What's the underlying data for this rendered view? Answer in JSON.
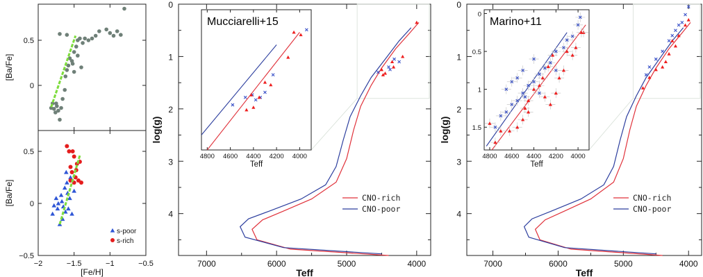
{
  "chart_data": [
    {
      "id": "p1",
      "type": "scatter",
      "xlim": [
        -2,
        -0.5
      ],
      "ylim": [
        -0.5,
        0.9
      ],
      "yticks": [
        -0.5,
        0,
        0.5
      ],
      "ytick_labels": [
        "−0.5",
        "0",
        "0.5"
      ],
      "xticks": [
        -2,
        -1.5,
        -1,
        -0.5
      ],
      "ylabel": "[Ba/Fe]",
      "colors": {
        "points": "#6f8078",
        "fit": "#7ddc3c"
      },
      "points": [
        [
          -1.82,
          -0.25
        ],
        [
          -1.8,
          -0.2
        ],
        [
          -1.78,
          -0.26
        ],
        [
          -1.75,
          -0.2
        ],
        [
          -1.76,
          -0.3
        ],
        [
          -1.72,
          -0.28
        ],
        [
          -1.74,
          -0.23
        ],
        [
          -1.7,
          -0.38
        ],
        [
          -1.68,
          -0.25
        ],
        [
          -1.66,
          -0.15
        ],
        [
          -1.63,
          -0.05
        ],
        [
          -1.62,
          0.1
        ],
        [
          -1.6,
          0.17
        ],
        [
          -1.58,
          0.22
        ],
        [
          -1.56,
          0.3
        ],
        [
          -1.53,
          0.27
        ],
        [
          -1.5,
          0.37
        ],
        [
          -1.47,
          0.43
        ],
        [
          -1.45,
          0.5
        ],
        [
          -1.42,
          0.52
        ],
        [
          -1.38,
          0.47
        ],
        [
          -1.35,
          0.52
        ],
        [
          -1.3,
          0.5
        ],
        [
          -1.25,
          0.52
        ],
        [
          -1.2,
          0.55
        ],
        [
          -1.15,
          0.6
        ],
        [
          -1.05,
          0.62
        ],
        [
          -1.0,
          0.58
        ],
        [
          -0.95,
          0.55
        ],
        [
          -0.9,
          0.6
        ],
        [
          -0.85,
          0.56
        ],
        [
          -0.8,
          0.85
        ],
        [
          -1.7,
          0.57
        ],
        [
          -1.6,
          0.56
        ],
        [
          -1.45,
          0.33
        ],
        [
          -1.4,
          0.2
        ],
        [
          -1.5,
          0.15
        ],
        [
          -1.52,
          0.24
        ]
      ],
      "fit_line": [
        [
          -1.82,
          -0.24
        ],
        [
          -1.48,
          0.55
        ]
      ]
    },
    {
      "id": "p2",
      "type": "scatter",
      "xlim": [
        -2,
        -0.5
      ],
      "ylim": [
        -0.5,
        0.7
      ],
      "xticks": [
        -2,
        -1.5,
        -1,
        -0.5
      ],
      "xtick_labels": [
        "−2",
        "−1.5",
        "−1",
        "−0.5"
      ],
      "yticks": [
        -0.5,
        0,
        0.5
      ],
      "ytick_labels": [
        "−0.5",
        "0",
        "0.5"
      ],
      "xlabel": "[Fe/H]",
      "ylabel": "[Ba/Fe]",
      "colors": {
        "s-poor": "#2f56d6",
        "s-rich": "#e51d1d",
        "fit": "#7ddc3c"
      },
      "series": [
        {
          "name": "s-poor",
          "marker": "triangle",
          "points": [
            [
              -1.8,
              -0.1
            ],
            [
              -1.78,
              -0.02
            ],
            [
              -1.75,
              0.05
            ],
            [
              -1.73,
              -0.05
            ],
            [
              -1.7,
              -0.2
            ],
            [
              -1.68,
              0.08
            ],
            [
              -1.67,
              0.02
            ],
            [
              -1.65,
              -0.03
            ],
            [
              -1.63,
              0.15
            ],
            [
              -1.62,
              -0.08
            ],
            [
              -1.6,
              0.2
            ],
            [
              -1.59,
              0.1
            ],
            [
              -1.58,
              -0.05
            ],
            [
              -1.56,
              0.05
            ],
            [
              -1.55,
              0.25
            ],
            [
              -1.53,
              -0.1
            ],
            [
              -1.5,
              0.12
            ],
            [
              -1.72,
              0.0
            ],
            [
              -1.66,
              -0.15
            ],
            [
              -1.61,
              0.3
            ]
          ]
        },
        {
          "name": "s-rich",
          "marker": "circle",
          "points": [
            [
              -1.6,
              0.55
            ],
            [
              -1.57,
              0.5
            ],
            [
              -1.55,
              0.35
            ],
            [
              -1.53,
              0.3
            ],
            [
              -1.5,
              0.45
            ],
            [
              -1.48,
              0.25
            ],
            [
              -1.46,
              0.38
            ],
            [
              -1.44,
              0.22
            ],
            [
              -1.42,
              0.4
            ],
            [
              -1.55,
              0.22
            ],
            [
              -1.5,
              0.2
            ],
            [
              -1.47,
              0.32
            ],
            [
              -1.4,
              0.2
            ],
            [
              -1.52,
              0.5
            ]
          ]
        }
      ],
      "fit_line": [
        [
          -1.7,
          -0.2
        ],
        [
          -1.42,
          0.46
        ]
      ]
    },
    {
      "id": "p3",
      "type": "line",
      "xlim": [
        7400,
        3800
      ],
      "ylim": [
        4.8,
        0
      ],
      "xticks": [
        7000,
        6000,
        5000,
        4000
      ],
      "yticks": [
        0,
        1,
        2,
        3,
        4
      ],
      "xlabel": "Teff",
      "ylabel": "log(g)",
      "legend_position": "bottom-right",
      "colors": {
        "CNO-rich": "#e0313a",
        "CNO-poor": "#2c3e9e",
        "stars": "#ee1f1f",
        "crosses": "#3850c8"
      },
      "series": [
        {
          "name": "CNO-rich",
          "points": [
            [
              3970,
              0.35
            ],
            [
              4100,
              0.55
            ],
            [
              4300,
              0.85
            ],
            [
              4500,
              1.22
            ],
            [
              4650,
              1.55
            ],
            [
              4800,
              1.95
            ],
            [
              4900,
              2.4
            ],
            [
              5000,
              2.95
            ],
            [
              5150,
              3.4
            ],
            [
              5500,
              3.72
            ],
            [
              5900,
              3.95
            ],
            [
              6200,
              4.12
            ],
            [
              6350,
              4.3
            ],
            [
              6280,
              4.5
            ],
            [
              5800,
              4.68
            ],
            [
              4400,
              4.8
            ]
          ]
        },
        {
          "name": "CNO-poor",
          "points": [
            [
              4080,
              0.45
            ],
            [
              4250,
              0.7
            ],
            [
              4450,
              1.05
            ],
            [
              4650,
              1.4
            ],
            [
              4800,
              1.75
            ],
            [
              4950,
              2.15
            ],
            [
              5050,
              2.6
            ],
            [
              5150,
              3.1
            ],
            [
              5300,
              3.45
            ],
            [
              5650,
              3.72
            ],
            [
              6100,
              3.95
            ],
            [
              6400,
              4.1
            ],
            [
              6520,
              4.25
            ],
            [
              6450,
              4.45
            ],
            [
              5900,
              4.65
            ],
            [
              4500,
              4.77
            ]
          ]
        }
      ],
      "stars_tri": [
        [
          4330,
          1.2
        ],
        [
          4350,
          1.1
        ],
        [
          4450,
          1.32
        ],
        [
          4480,
          1.35
        ],
        [
          4500,
          1.25
        ],
        [
          4200,
          1.0
        ],
        [
          4000,
          0.35
        ]
      ],
      "stars_x": [
        [
          4250,
          1.1
        ],
        [
          4320,
          1.05
        ],
        [
          4400,
          1.2
        ],
        [
          4550,
          1.3
        ],
        [
          4380,
          1.25
        ]
      ],
      "inset": {
        "title": "Mucciarelli+15",
        "xlim": [
          4850,
          3900
        ],
        "ylim": [
          2.9,
          0.1
        ],
        "xticks": [
          4800,
          4600,
          4400,
          4200,
          4000
        ],
        "xlabel": "Teff",
        "lines": [
          {
            "name": "CNO-rich",
            "points": [
              [
                4800,
                2.9
              ],
              [
                4000,
                0.55
              ]
            ]
          },
          {
            "name": "CNO-poor",
            "points": [
              [
                4850,
                2.6
              ],
              [
                4200,
                0.8
              ]
            ]
          }
        ],
        "tri": [
          [
            3990,
            0.6
          ],
          [
            4050,
            0.55
          ],
          [
            4100,
            1.05
          ],
          [
            4400,
            2.05
          ],
          [
            4460,
            2.1
          ],
          [
            4420,
            1.8
          ],
          [
            4300,
            1.55
          ],
          [
            4250,
            1.6
          ],
          [
            4350,
            1.85
          ]
        ],
        "x": [
          [
            3940,
            0.5
          ],
          [
            4230,
            1.4
          ],
          [
            4300,
            1.75
          ],
          [
            4340,
            1.85
          ],
          [
            4380,
            1.9
          ],
          [
            4410,
            1.8
          ],
          [
            4470,
            1.85
          ],
          [
            4580,
            2.0
          ]
        ]
      }
    },
    {
      "id": "p4",
      "type": "line",
      "xlim": [
        7400,
        3800
      ],
      "ylim": [
        4.8,
        0
      ],
      "xticks": [
        7000,
        6000,
        5000,
        4000
      ],
      "yticks": [
        0,
        1,
        2,
        3,
        4
      ],
      "xlabel": "Teff",
      "ylabel": "log(g)",
      "legend_position": "bottom-right",
      "colors": {
        "CNO-rich": "#e0313a",
        "CNO-poor": "#2c3e9e",
        "stars": "#ee1f1f",
        "crosses": "#3850c8"
      },
      "series": [
        {
          "name": "CNO-rich",
          "points": [
            [
              3970,
              0.35
            ],
            [
              4100,
              0.55
            ],
            [
              4300,
              0.85
            ],
            [
              4500,
              1.22
            ],
            [
              4650,
              1.55
            ],
            [
              4800,
              1.95
            ],
            [
              4900,
              2.4
            ],
            [
              5000,
              2.95
            ],
            [
              5150,
              3.4
            ],
            [
              5500,
              3.72
            ],
            [
              5900,
              3.95
            ],
            [
              6200,
              4.12
            ],
            [
              6350,
              4.3
            ],
            [
              6280,
              4.5
            ],
            [
              5800,
              4.68
            ],
            [
              4400,
              4.8
            ]
          ]
        },
        {
          "name": "CNO-poor",
          "points": [
            [
              4080,
              0.45
            ],
            [
              4250,
              0.7
            ],
            [
              4450,
              1.05
            ],
            [
              4650,
              1.4
            ],
            [
              4800,
              1.75
            ],
            [
              4950,
              2.15
            ],
            [
              5050,
              2.6
            ],
            [
              5150,
              3.1
            ],
            [
              5300,
              3.45
            ],
            [
              5650,
              3.72
            ],
            [
              6100,
              3.95
            ],
            [
              6400,
              4.1
            ],
            [
              6520,
              4.25
            ],
            [
              6450,
              4.45
            ],
            [
              5900,
              4.65
            ],
            [
              4500,
              4.77
            ]
          ]
        }
      ],
      "stars_tri": [
        [
          4000,
          0.3
        ],
        [
          4050,
          0.4
        ],
        [
          4150,
          0.6
        ],
        [
          4200,
          0.8
        ],
        [
          4300,
          0.95
        ],
        [
          4400,
          1.2
        ],
        [
          4500,
          1.25
        ],
        [
          4600,
          1.4
        ],
        [
          4700,
          1.6
        ],
        [
          4350,
          1.1
        ],
        [
          4250,
          0.7
        ]
      ],
      "stars_x": [
        [
          4000,
          0.05
        ],
        [
          4050,
          0.2
        ],
        [
          4100,
          0.35
        ],
        [
          4200,
          0.5
        ],
        [
          4300,
          0.7
        ],
        [
          4400,
          0.9
        ],
        [
          4500,
          1.05
        ],
        [
          4600,
          1.2
        ],
        [
          4650,
          1.35
        ],
        [
          4150,
          0.4
        ],
        [
          4250,
          0.6
        ]
      ],
      "inset": {
        "title": "Marino+11",
        "xlim": [
          4850,
          3900
        ],
        "ylim": [
          1.8,
          -0.05
        ],
        "xticks": [
          4800,
          4600,
          4400,
          4200,
          4000
        ],
        "xlabel": "Teff",
        "yticks": [
          0,
          0.5,
          1,
          1.5
        ],
        "ytick_labels": [
          "0",
          "0.5",
          "1",
          "1.5"
        ],
        "lines": [
          {
            "name": "CNO-rich",
            "points": [
              [
                4780,
                1.8
              ],
              [
                3930,
                0.15
              ]
            ]
          },
          {
            "name": "CNO-poor",
            "points": [
              [
                4830,
                1.75
              ],
              [
                4100,
                0.25
              ]
            ]
          }
        ],
        "tri": [
          [
            3950,
            0.25
          ],
          [
            3970,
            0.25
          ],
          [
            4020,
            0.45
          ],
          [
            4050,
            0.55
          ],
          [
            4100,
            0.5
          ],
          [
            4130,
            0.75
          ],
          [
            4170,
            0.85
          ],
          [
            4230,
            0.55
          ],
          [
            4270,
            0.7
          ],
          [
            4320,
            0.85
          ],
          [
            4350,
            0.95
          ],
          [
            4400,
            1.0
          ],
          [
            4450,
            1.15
          ],
          [
            4480,
            1.25
          ],
          [
            4500,
            1.4
          ],
          [
            4550,
            1.5
          ],
          [
            4620,
            1.55
          ],
          [
            4700,
            1.55
          ],
          [
            4750,
            1.7
          ],
          [
            4800,
            1.45
          ],
          [
            4300,
            1.1
          ],
          [
            4250,
            1.2
          ],
          [
            4450,
            1.3
          ],
          [
            4200,
            1.05
          ]
        ],
        "x": [
          [
            3980,
            0.05
          ],
          [
            4000,
            0.15
          ],
          [
            4050,
            0.3
          ],
          [
            4100,
            0.35
          ],
          [
            4130,
            0.45
          ],
          [
            4200,
            0.5
          ],
          [
            4250,
            0.65
          ],
          [
            4300,
            0.72
          ],
          [
            4350,
            0.8
          ],
          [
            4400,
            0.9
          ],
          [
            4450,
            0.95
          ],
          [
            4500,
            1.05
          ],
          [
            4550,
            1.15
          ],
          [
            4600,
            1.2
          ],
          [
            4650,
            1.3
          ],
          [
            4700,
            1.35
          ],
          [
            4750,
            1.5
          ],
          [
            4400,
            0.6
          ],
          [
            4500,
            0.75
          ],
          [
            4550,
            0.85
          ],
          [
            4600,
            0.9
          ],
          [
            4200,
            0.75
          ],
          [
            4350,
            1.05
          ],
          [
            4480,
            1.1
          ],
          [
            4650,
            1.0
          ]
        ]
      }
    }
  ]
}
